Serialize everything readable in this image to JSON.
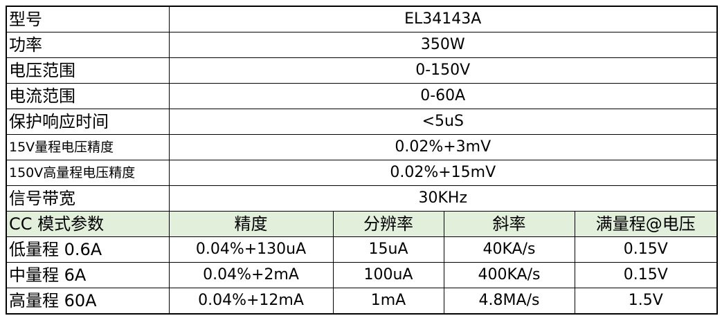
{
  "specs": [
    [
      "型号",
      "EL34143A"
    ],
    [
      "功率",
      "350W"
    ],
    [
      "电压范围",
      "0-150V"
    ],
    [
      "电流范围",
      "0-60A"
    ],
    [
      "保护响应时间",
      "<5uS"
    ],
    [
      "15V量程电压精度",
      "0.02%+3mV"
    ],
    [
      "150V高量程电压精度",
      "0.02%+15mV"
    ],
    [
      "信号带宽",
      "30KHz"
    ]
  ],
  "cc_table": {
    "header": [
      "CC 模式参数",
      "精度",
      "分辨率",
      "斜率",
      "满量程@电压"
    ],
    "rows": [
      [
        "低量程 0.6A",
        "0.04%+130uA",
        "15uA",
        "40KA/s",
        "0.15V"
      ],
      [
        "中量程 6A",
        "0.04%+2mA",
        "100uA",
        "400KA/s",
        "0.15V"
      ],
      [
        "高量程 60A",
        "0.04%+12mA",
        "1mA",
        "4.8MA/s",
        "1.5V"
      ]
    ]
  }
}
